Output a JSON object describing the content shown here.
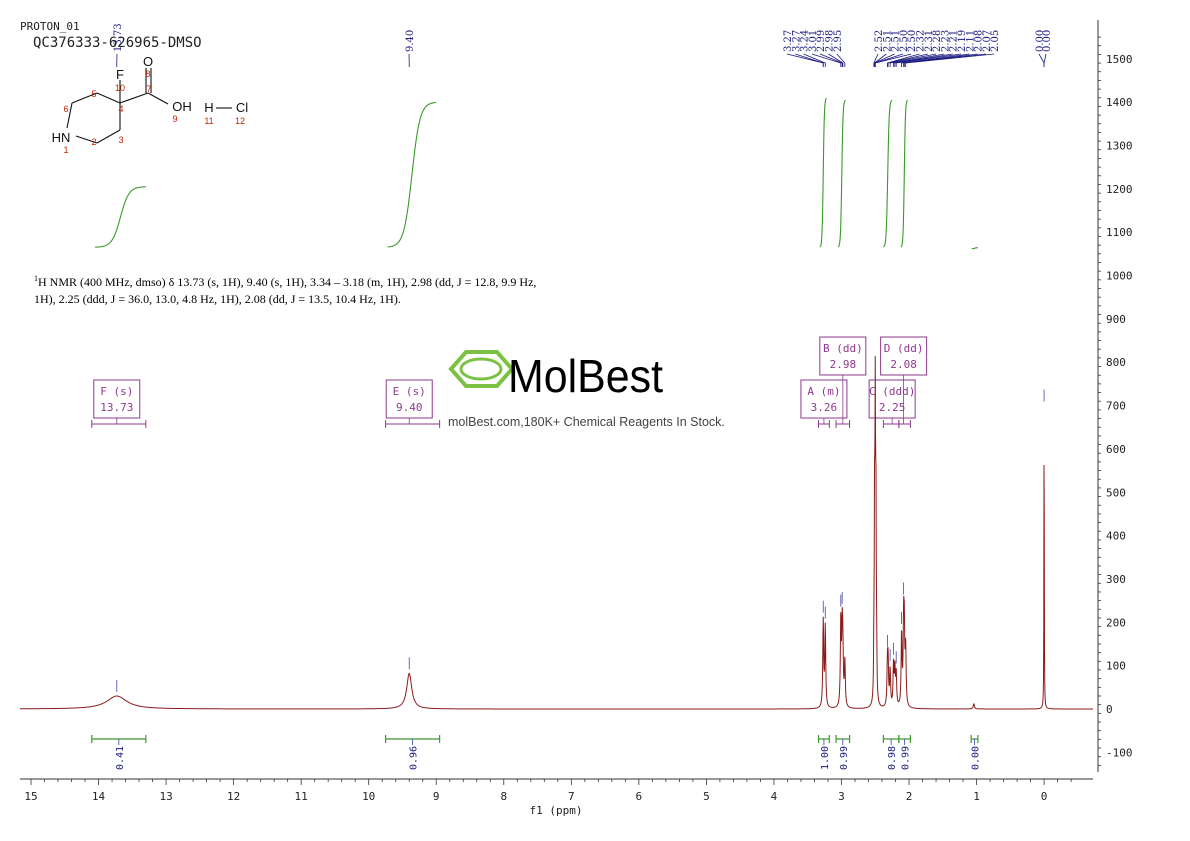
{
  "header": {
    "experiment": "PROTON_01",
    "sample": "QC376333-626965-DMSO"
  },
  "structure": {
    "atoms": [
      {
        "symbol": "F",
        "num": "10"
      },
      {
        "symbol": "O",
        "num": "8"
      },
      {
        "symbol": "",
        "num": "7"
      },
      {
        "symbol": "OH",
        "num": "9"
      },
      {
        "symbol": "",
        "num": "4"
      },
      {
        "symbol": "",
        "num": "5"
      },
      {
        "symbol": "",
        "num": "6"
      },
      {
        "symbol": "HN",
        "num": "1"
      },
      {
        "symbol": "",
        "num": "2"
      },
      {
        "symbol": "",
        "num": "3"
      },
      {
        "symbol": "H",
        "num": "11"
      },
      {
        "symbol": "Cl",
        "num": "12"
      }
    ]
  },
  "nmr_text": {
    "line1_sup": "1",
    "line1": "H NMR (400 MHz, dmso) δ 13.73 (s, 1H), 9.40 (s, 1H), 3.34 – 3.18 (m, 1H), 2.98 (dd, J = 12.8, 9.9 Hz,",
    "line2": "1H), 2.25 (ddd, J = 36.0, 13.0, 4.8 Hz, 1H), 2.08 (dd, J = 13.5, 10.4 Hz, 1H)."
  },
  "watermark": {
    "brand": "MolBest",
    "tagline": "molBest.com,180K+ Chemical Reagents In Stock."
  },
  "chart_data": {
    "type": "line",
    "title": "",
    "xlabel": "f1 (ppm)",
    "ylabel": "",
    "xlim": [
      15.2,
      -0.7
    ],
    "ylim": [
      -150,
      1580
    ],
    "x_reversed": true,
    "x_ticks": [
      15,
      14,
      13,
      12,
      11,
      10,
      9,
      8,
      7,
      6,
      5,
      4,
      3,
      2,
      1,
      0
    ],
    "x_tick_labels": [
      "15",
      "14",
      "13",
      "12",
      "11",
      "10",
      "9",
      "8",
      "7",
      "6",
      "5",
      "4",
      "3",
      "2",
      "1",
      "0"
    ],
    "y_ticks": [
      -100,
      0,
      100,
      200,
      300,
      400,
      500,
      600,
      700,
      800,
      900,
      1000,
      1100,
      1200,
      1300,
      1400,
      1500
    ],
    "y_tick_labels": [
      "-100",
      "0",
      "100",
      "200",
      "300",
      "400",
      "500",
      "600",
      "700",
      "800",
      "900",
      "1000",
      "1100",
      "1200",
      "1300",
      "1400",
      "1500"
    ],
    "y_axis_position": "right",
    "colors": {
      "spectrum": "#8b1a1a",
      "integral": "#3a9a2a",
      "peak_label": "#1a1a80",
      "multiplet": "#8e3a8e",
      "axis": "#333333"
    },
    "peaks": [
      {
        "ppm": 13.73,
        "height": 30,
        "width": 0.18
      },
      {
        "ppm": 9.4,
        "height": 82,
        "width": 0.045
      },
      {
        "ppm": 3.27,
        "height": 200,
        "width": 0.008
      },
      {
        "ppm": 3.24,
        "height": 185,
        "width": 0.008
      },
      {
        "ppm": 3.01,
        "height": 195,
        "width": 0.008
      },
      {
        "ppm": 2.99,
        "height": 155,
        "width": 0.008
      },
      {
        "ppm": 2.98,
        "height": 120,
        "width": 0.008
      },
      {
        "ppm": 2.95,
        "height": 105,
        "width": 0.008
      },
      {
        "ppm": 2.52,
        "height": 110,
        "width": 0.005
      },
      {
        "ppm": 2.51,
        "height": 430,
        "width": 0.005
      },
      {
        "ppm": 2.5,
        "height": 630,
        "width": 0.005
      },
      {
        "ppm": 2.49,
        "height": 420,
        "width": 0.005
      },
      {
        "ppm": 2.48,
        "height": 110,
        "width": 0.005
      },
      {
        "ppm": 2.32,
        "height": 90,
        "width": 0.008
      },
      {
        "ppm": 2.31,
        "height": 95,
        "width": 0.008
      },
      {
        "ppm": 2.28,
        "height": 85,
        "width": 0.008
      },
      {
        "ppm": 2.23,
        "height": 95,
        "width": 0.008
      },
      {
        "ppm": 2.21,
        "height": 85,
        "width": 0.008
      },
      {
        "ppm": 2.19,
        "height": 75,
        "width": 0.008
      },
      {
        "ppm": 2.11,
        "height": 165,
        "width": 0.008
      },
      {
        "ppm": 2.08,
        "height": 175,
        "width": 0.008
      },
      {
        "ppm": 2.07,
        "height": 150,
        "width": 0.008
      },
      {
        "ppm": 2.05,
        "height": 130,
        "width": 0.008
      },
      {
        "ppm": 1.04,
        "height": 12,
        "width": 0.01
      },
      {
        "ppm": 0.0,
        "height": 700,
        "width": 0.003
      }
    ],
    "peak_labels_top": [
      {
        "text": "13.73",
        "ppm": 13.73
      },
      {
        "text": "9.40",
        "ppm": 9.4
      },
      {
        "text": "3.27",
        "ppm": 3.27
      },
      {
        "text": "3.27",
        "ppm": 3.27
      },
      {
        "text": "3.24",
        "ppm": 3.24
      },
      {
        "text": "3.01",
        "ppm": 3.01
      },
      {
        "text": "2.99",
        "ppm": 2.99
      },
      {
        "text": "2.98",
        "ppm": 2.98
      },
      {
        "text": "2.95",
        "ppm": 2.95
      },
      {
        "text": "2.52",
        "ppm": 2.52
      },
      {
        "text": "2.51",
        "ppm": 2.51
      },
      {
        "text": "2.51",
        "ppm": 2.51
      },
      {
        "text": "2.50",
        "ppm": 2.5
      },
      {
        "text": "2.50",
        "ppm": 2.5
      },
      {
        "text": "2.32",
        "ppm": 2.32
      },
      {
        "text": "2.31",
        "ppm": 2.31
      },
      {
        "text": "2.28",
        "ppm": 2.28
      },
      {
        "text": "2.23",
        "ppm": 2.23
      },
      {
        "text": "2.21",
        "ppm": 2.21
      },
      {
        "text": "2.19",
        "ppm": 2.19
      },
      {
        "text": "2.11",
        "ppm": 2.11
      },
      {
        "text": "2.08",
        "ppm": 2.08
      },
      {
        "text": "2.07",
        "ppm": 2.07
      },
      {
        "text": "2.05",
        "ppm": 2.05
      },
      {
        "text": "0.00",
        "ppm": 0.0
      },
      {
        "text": "0.00",
        "ppm": 0.0
      }
    ],
    "integrals": [
      {
        "label": "0.41",
        "from": 14.1,
        "to": 13.3
      },
      {
        "label": "0.96",
        "from": 9.75,
        "to": 8.95
      },
      {
        "label": "1.00",
        "from": 3.34,
        "to": 3.18
      },
      {
        "label": "0.99",
        "from": 3.08,
        "to": 2.88
      },
      {
        "label": "0.98",
        "from": 2.38,
        "to": 2.15
      },
      {
        "label": "0.99",
        "from": 2.15,
        "to": 1.98
      },
      {
        "label": "0.00",
        "from": 1.08,
        "to": 0.98
      }
    ],
    "integral_curves": [
      {
        "from": 14.05,
        "to": 13.3,
        "low": 1065,
        "high": 1205
      },
      {
        "from": 9.72,
        "to": 9.0,
        "low": 1065,
        "high": 1400
      },
      {
        "from": 3.32,
        "to": 3.22,
        "low": 1065,
        "high": 1410
      },
      {
        "from": 3.05,
        "to": 2.94,
        "low": 1065,
        "high": 1405
      },
      {
        "from": 2.38,
        "to": 2.25,
        "low": 1065,
        "high": 1405
      },
      {
        "from": 2.12,
        "to": 2.02,
        "low": 1065,
        "high": 1405
      },
      {
        "from": 1.07,
        "to": 0.98,
        "low": 1062,
        "high": 1064
      }
    ],
    "multiplets": [
      {
        "name": "F (s)",
        "value": "13.73",
        "ppm": 13.73,
        "from": 14.1,
        "to": 13.3,
        "level": 1
      },
      {
        "name": "E (s)",
        "value": "9.40",
        "ppm": 9.4,
        "from": 9.75,
        "to": 8.95,
        "level": 1
      },
      {
        "name": "A (m)",
        "value": "3.26",
        "ppm": 3.26,
        "from": 3.34,
        "to": 3.18,
        "level": 1
      },
      {
        "name": "B (dd)",
        "value": "2.98",
        "ppm": 2.98,
        "from": 3.08,
        "to": 2.88,
        "level": 2
      },
      {
        "name": "C (ddd)",
        "value": "2.25",
        "ppm": 2.25,
        "from": 2.38,
        "to": 2.15,
        "level": 1
      },
      {
        "name": "D (dd)",
        "value": "2.08",
        "ppm": 2.08,
        "from": 2.15,
        "to": 1.98,
        "level": 2
      }
    ]
  }
}
